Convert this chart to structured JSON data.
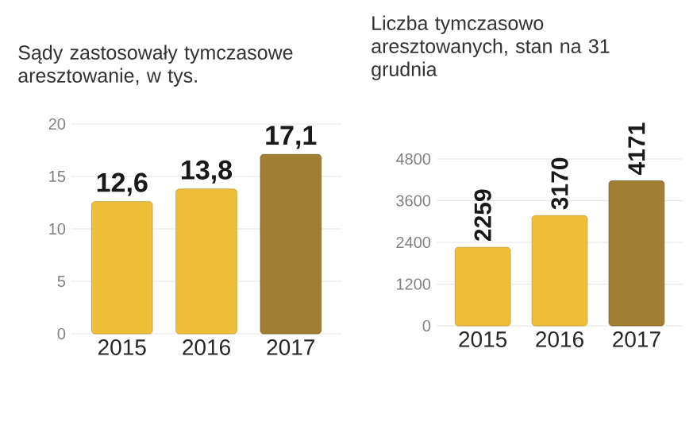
{
  "chart_data": [
    {
      "type": "bar",
      "title": "Sądy zastosowały tymczasowe aresztowanie, w tys.",
      "categories": [
        "2015",
        "2016",
        "2017"
      ],
      "values": [
        12.6,
        13.8,
        17.1
      ],
      "colors": [
        "#f0bf3a",
        "#f0bf3a",
        "#a07e32"
      ],
      "value_labels": [
        "12,6",
        "13,8",
        "17,1"
      ],
      "ylim": [
        0,
        20
      ],
      "yticks": [
        0,
        5,
        10,
        15,
        20
      ],
      "grid": "y"
    },
    {
      "type": "bar",
      "title": "Liczba tymczasowo aresztowanych, stan na 31 grudnia",
      "categories": [
        "2015",
        "2016",
        "2017"
      ],
      "values": [
        2259,
        3170,
        4171
      ],
      "colors": [
        "#f0bf3a",
        "#f0bf3a",
        "#a07e32"
      ],
      "data_labels": true,
      "ylim": [
        0,
        4800
      ],
      "yticks": [
        0,
        1200,
        2400,
        3600,
        4800
      ],
      "grid": "y"
    }
  ]
}
